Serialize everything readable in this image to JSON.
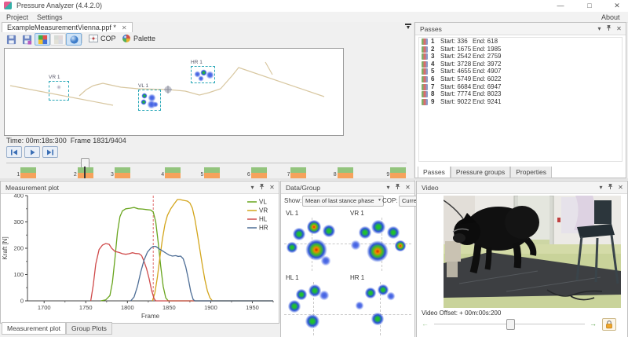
{
  "icons": {
    "caret_down": "▾",
    "close": "✕",
    "minimize": "—",
    "maximize": "□",
    "window_close": "✕",
    "arrow_left": "←",
    "arrow_right": "→",
    "dropdown_caret": "▼"
  },
  "window": {
    "title": "Pressure Analyzer (4.4.2.0)"
  },
  "menu": {
    "items": [
      "Project",
      "Settings"
    ],
    "right_item": "About"
  },
  "document_tab": {
    "label": "ExampleMeasurementVienna.ppf *"
  },
  "toolbar": {
    "cop_label": "COP",
    "palette_label": "Palette"
  },
  "viewer": {
    "time_label": "Time: 00m:18s:300",
    "frame_label": "Frame 1831/9404",
    "boxes": [
      "VR 1",
      "VL 1",
      "HR 1"
    ]
  },
  "timeline": {
    "current_frame": 1831,
    "total_frames": 9404
  },
  "passes": {
    "title": "Passes",
    "start_label": "Start:",
    "end_label": "End:",
    "items": [
      {
        "n": 1,
        "start": 336,
        "end": 618
      },
      {
        "n": 2,
        "start": 1675,
        "end": 1985
      },
      {
        "n": 3,
        "start": 2542,
        "end": 2759
      },
      {
        "n": 4,
        "start": 3728,
        "end": 3972
      },
      {
        "n": 5,
        "start": 4655,
        "end": 4907
      },
      {
        "n": 6,
        "start": 5749,
        "end": 6022
      },
      {
        "n": 7,
        "start": 6684,
        "end": 6947
      },
      {
        "n": 8,
        "start": 7774,
        "end": 8023
      },
      {
        "n": 9,
        "start": 9022,
        "end": 9241
      }
    ],
    "tabs": [
      "Passes",
      "Pressure groups",
      "Properties"
    ]
  },
  "plot_panel": {
    "title": "Measurement plot",
    "tabs": [
      "Measurement plot",
      "Group Plots"
    ]
  },
  "chart_data": {
    "type": "line",
    "title": "",
    "xlabel": "Frame",
    "ylabel": "Kraft [N]",
    "xlim": [
      1680,
      1975
    ],
    "ylim": [
      0,
      400
    ],
    "xticks": [
      1700,
      1750,
      1800,
      1850,
      1900,
      1950
    ],
    "yticks": [
      0,
      100,
      200,
      300,
      400
    ],
    "grid": false,
    "legend_position": "top-right",
    "cursor_frame": 1831,
    "cursor_color": "#e06b6b",
    "series": [
      {
        "name": "VL",
        "color": "#69a51e",
        "points": [
          [
            1768,
            0
          ],
          [
            1774,
            4
          ],
          [
            1779,
            20
          ],
          [
            1782,
            70
          ],
          [
            1785,
            160
          ],
          [
            1788,
            260
          ],
          [
            1791,
            320
          ],
          [
            1794,
            342
          ],
          [
            1798,
            350
          ],
          [
            1803,
            352
          ],
          [
            1808,
            355
          ],
          [
            1813,
            350
          ],
          [
            1818,
            349
          ],
          [
            1823,
            347
          ],
          [
            1828,
            345
          ],
          [
            1831,
            338
          ],
          [
            1834,
            300
          ],
          [
            1837,
            220
          ],
          [
            1840,
            130
          ],
          [
            1843,
            55
          ],
          [
            1846,
            12
          ],
          [
            1849,
            0
          ],
          [
            1975,
            0
          ]
        ]
      },
      {
        "name": "VR",
        "color": "#d3a51b",
        "points": [
          [
            1830,
            0
          ],
          [
            1833,
            30
          ],
          [
            1836,
            90
          ],
          [
            1839,
            165
          ],
          [
            1842,
            235
          ],
          [
            1845,
            290
          ],
          [
            1848,
            325
          ],
          [
            1852,
            350
          ],
          [
            1856,
            368
          ],
          [
            1860,
            385
          ],
          [
            1863,
            385
          ],
          [
            1866,
            383
          ],
          [
            1869,
            381
          ],
          [
            1872,
            379
          ],
          [
            1875,
            372
          ],
          [
            1878,
            352
          ],
          [
            1881,
            310
          ],
          [
            1884,
            255
          ],
          [
            1887,
            195
          ],
          [
            1890,
            135
          ],
          [
            1893,
            80
          ],
          [
            1896,
            38
          ],
          [
            1899,
            12
          ],
          [
            1902,
            0
          ],
          [
            1975,
            0
          ]
        ]
      },
      {
        "name": "HL",
        "color": "#cf4a4a",
        "points": [
          [
            1756,
            0
          ],
          [
            1759,
            60
          ],
          [
            1762,
            140
          ],
          [
            1766,
            195
          ],
          [
            1770,
            212
          ],
          [
            1774,
            218
          ],
          [
            1778,
            215
          ],
          [
            1781,
            200
          ],
          [
            1785,
            188
          ],
          [
            1790,
            184
          ],
          [
            1794,
            179
          ],
          [
            1798,
            177
          ],
          [
            1802,
            179
          ],
          [
            1806,
            183
          ],
          [
            1810,
            180
          ],
          [
            1814,
            179
          ],
          [
            1817,
            172
          ],
          [
            1820,
            150
          ],
          [
            1823,
            122
          ],
          [
            1826,
            85
          ],
          [
            1829,
            40
          ],
          [
            1832,
            8
          ],
          [
            1834,
            0
          ],
          [
            1975,
            0
          ]
        ]
      },
      {
        "name": "HR",
        "color": "#4e6e96",
        "points": [
          [
            1804,
            0
          ],
          [
            1808,
            15
          ],
          [
            1812,
            55
          ],
          [
            1816,
            110
          ],
          [
            1820,
            155
          ],
          [
            1824,
            185
          ],
          [
            1828,
            200
          ],
          [
            1831,
            207
          ],
          [
            1834,
            207
          ],
          [
            1838,
            198
          ],
          [
            1842,
            190
          ],
          [
            1846,
            182
          ],
          [
            1850,
            174
          ],
          [
            1854,
            170
          ],
          [
            1858,
            172
          ],
          [
            1861,
            169
          ],
          [
            1864,
            170
          ],
          [
            1867,
            160
          ],
          [
            1870,
            130
          ],
          [
            1873,
            85
          ],
          [
            1876,
            35
          ],
          [
            1879,
            5
          ],
          [
            1881,
            0
          ],
          [
            1975,
            0
          ]
        ]
      }
    ]
  },
  "data_group": {
    "title": "Data/Group",
    "show_label": "Show:",
    "show_value": "Mean of last stance phase",
    "cop_label": "COP:",
    "cop_value": "Current and p",
    "paw_labels": [
      "VL 1",
      "VR 1",
      "HL 1",
      "HR 1"
    ]
  },
  "video": {
    "title": "Video",
    "offset_label": "Video Offset:  + 00m:00s:200"
  }
}
